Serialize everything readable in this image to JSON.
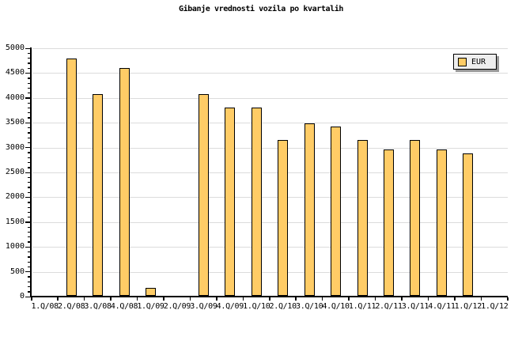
{
  "title": "Gibanje vrednosti vozila po kvartalih",
  "legend": {
    "position": "top-right",
    "items": [
      {
        "label": "EUR",
        "color": "#FFCC66"
      }
    ]
  },
  "colors": {
    "background": "#FFFFFF",
    "bar_fill": "#FFCC66",
    "bar_border": "#000000",
    "grid": "#DCDCDC",
    "axis": "#000000",
    "text": "#000000",
    "legend_bg": "#EEEEEE",
    "legend_border": "#000000",
    "legend_shadow": "#999999"
  },
  "chart_data": {
    "type": "bar",
    "title": "Gibanje vrednosti vozila po kvartalih",
    "categories": [
      "1.Q/08",
      "2.Q/08",
      "3.Q/08",
      "4.Q/08",
      "1.Q/09",
      "2.Q/09",
      "3.Q/09",
      "4.Q/09",
      "1.Q/10",
      "2.Q/10",
      "3.Q/10",
      "4.Q/10",
      "1.Q/11",
      "2.Q/11",
      "3.Q/11",
      "4.Q/11",
      "1.Q/12",
      "1.Q/12"
    ],
    "series": [
      {
        "name": "EUR",
        "values": [
          null,
          4800,
          4080,
          4600,
          180,
          null,
          4080,
          3800,
          3800,
          3160,
          3490,
          3420,
          3160,
          2970,
          3160,
          2970,
          2890,
          null
        ]
      }
    ],
    "xlabel": "",
    "ylabel": "",
    "ylim": [
      0,
      5000
    ],
    "y_tick_step": 500,
    "y_minor_tick_step": 100,
    "y_tick_labels": [
      "0",
      "500",
      "1000",
      "1500",
      "2000",
      "2500",
      "3000",
      "3500",
      "4000",
      "4500",
      "5000"
    ],
    "grid": true,
    "legend_position": "top-right"
  }
}
